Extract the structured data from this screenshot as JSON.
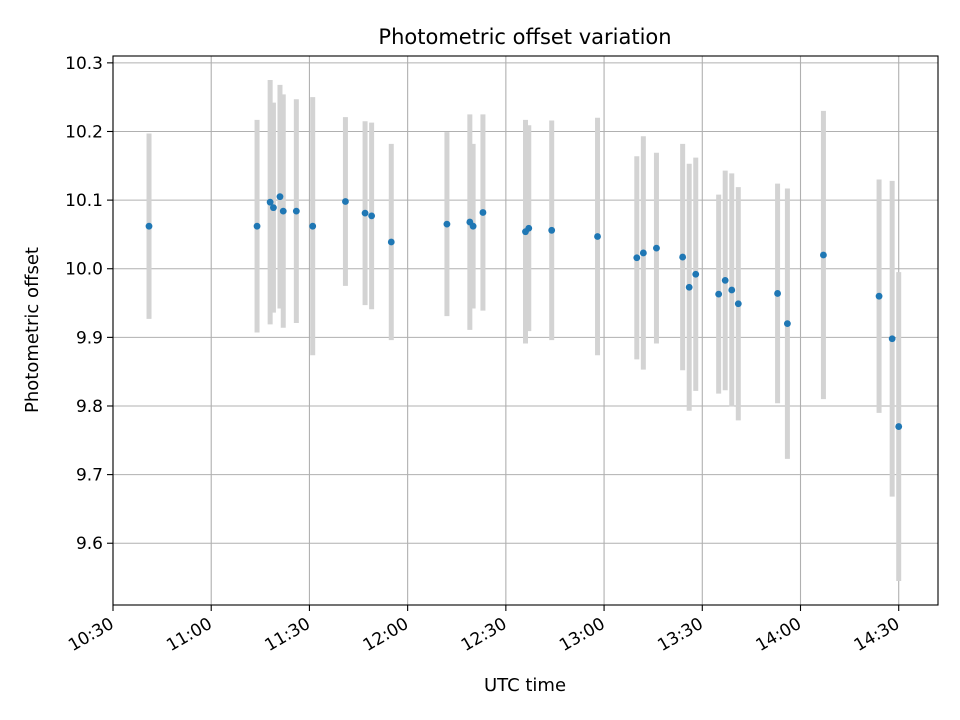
{
  "chart_data": {
    "type": "scatter",
    "title": "Photometric offset variation",
    "xlabel": "UTC time",
    "ylabel": "Photometric offset",
    "x_ticks": [
      "10:30",
      "11:00",
      "11:30",
      "12:00",
      "12:30",
      "13:00",
      "13:30",
      "14:00",
      "14:30"
    ],
    "x_range": [
      "10:30",
      "14:42"
    ],
    "y_ticks": [
      "9.6",
      "9.7",
      "9.8",
      "9.9",
      "10.0",
      "10.1",
      "10.2",
      "10.3"
    ],
    "ylim": [
      9.51,
      10.31
    ],
    "grid": true,
    "marker_color": "#1f77b4",
    "errorbar_color": "#d3d3d3",
    "series": [
      {
        "points": [
          {
            "x": "10:41",
            "y": 10.062,
            "err": 0.135
          },
          {
            "x": "11:14",
            "y": 10.062,
            "err": 0.155
          },
          {
            "x": "11:18",
            "y": 10.097,
            "err": 0.178
          },
          {
            "x": "11:19",
            "y": 10.089,
            "err": 0.153
          },
          {
            "x": "11:21",
            "y": 10.105,
            "err": 0.163
          },
          {
            "x": "11:22",
            "y": 10.084,
            "err": 0.17
          },
          {
            "x": "11:26",
            "y": 10.084,
            "err": 0.163
          },
          {
            "x": "11:31",
            "y": 10.062,
            "err": 0.188
          },
          {
            "x": "11:41",
            "y": 10.098,
            "err": 0.123
          },
          {
            "x": "11:47",
            "y": 10.081,
            "err": 0.134
          },
          {
            "x": "11:49",
            "y": 10.077,
            "err": 0.136
          },
          {
            "x": "11:55",
            "y": 10.039,
            "err": 0.143
          },
          {
            "x": "12:12",
            "y": 10.065,
            "err": 0.134
          },
          {
            "x": "12:19",
            "y": 10.068,
            "err": 0.157
          },
          {
            "x": "12:20",
            "y": 10.062,
            "err": 0.12
          },
          {
            "x": "12:23",
            "y": 10.082,
            "err": 0.143
          },
          {
            "x": "12:36",
            "y": 10.054,
            "err": 0.163
          },
          {
            "x": "12:37",
            "y": 10.059,
            "err": 0.15
          },
          {
            "x": "12:44",
            "y": 10.056,
            "err": 0.16
          },
          {
            "x": "12:58",
            "y": 10.047,
            "err": 0.173
          },
          {
            "x": "13:10",
            "y": 10.016,
            "err": 0.148
          },
          {
            "x": "13:12",
            "y": 10.023,
            "err": 0.17
          },
          {
            "x": "13:16",
            "y": 10.03,
            "err": 0.139
          },
          {
            "x": "13:24",
            "y": 10.017,
            "err": 0.165
          },
          {
            "x": "13:26",
            "y": 9.973,
            "err": 0.18
          },
          {
            "x": "13:28",
            "y": 9.992,
            "err": 0.17
          },
          {
            "x": "13:35",
            "y": 9.963,
            "err": 0.145
          },
          {
            "x": "13:37",
            "y": 9.983,
            "err": 0.16
          },
          {
            "x": "13:39",
            "y": 9.969,
            "err": 0.17
          },
          {
            "x": "13:41",
            "y": 9.949,
            "err": 0.17
          },
          {
            "x": "13:53",
            "y": 9.964,
            "err": 0.16
          },
          {
            "x": "13:56",
            "y": 9.92,
            "err": 0.197
          },
          {
            "x": "14:07",
            "y": 10.02,
            "err": 0.21
          },
          {
            "x": "14:24",
            "y": 9.96,
            "err": 0.17
          },
          {
            "x": "14:28",
            "y": 9.898,
            "err": 0.23
          },
          {
            "x": "14:30",
            "y": 9.77,
            "err": 0.225
          }
        ]
      }
    ]
  }
}
